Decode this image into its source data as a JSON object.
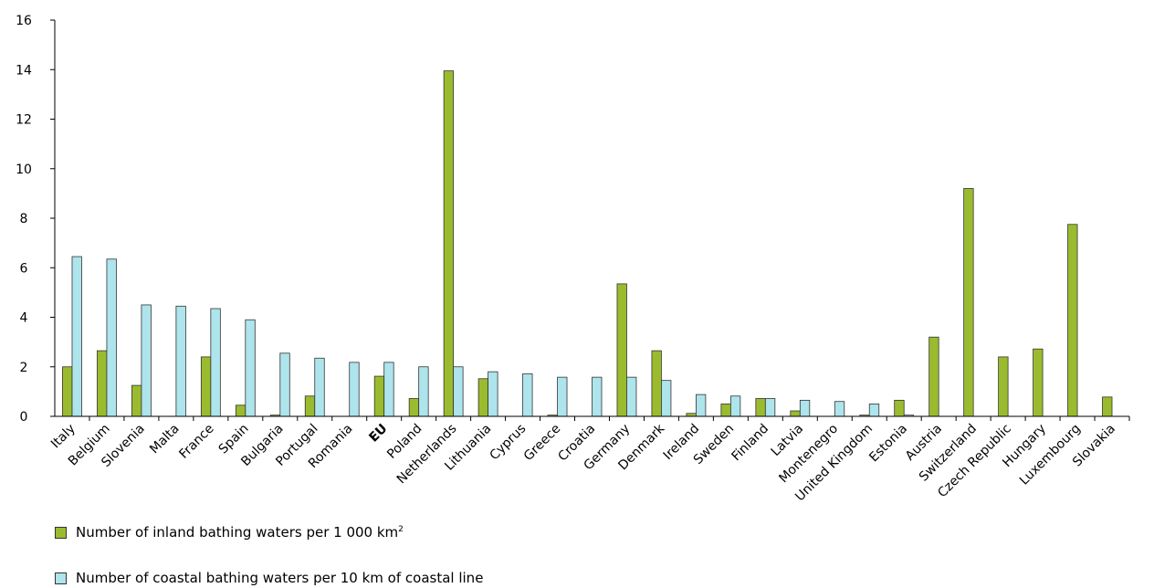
{
  "chart_data": {
    "type": "bar",
    "categories": [
      "Italy",
      "Belgium",
      "Slovenia",
      "Malta",
      "France",
      "Spain",
      "Bulgaria",
      "Portugal",
      "Romania",
      "EU",
      "Poland",
      "Netherlands",
      "Lithuania",
      "Cyprus",
      "Greece",
      "Croatia",
      "Germany",
      "Denmark",
      "Ireland",
      "Sweden",
      "Finland",
      "Latvia",
      "Montenegro",
      "United Kingdom",
      "Estonia",
      "Austria",
      "Switzerland",
      "Czech Republic",
      "Hungary",
      "Luxembourg",
      "Slovakia"
    ],
    "bold_categories": [
      "EU"
    ],
    "series": [
      {
        "name": "Number of inland bathing waters per 1 000 km",
        "name_superscript": "2",
        "color": "#9BBB2F",
        "values": [
          2.0,
          2.65,
          1.25,
          0,
          2.4,
          0.45,
          0.05,
          0.82,
          0,
          1.62,
          0.72,
          13.95,
          1.52,
          0,
          0.05,
          0,
          5.35,
          2.65,
          0.12,
          0.5,
          0.72,
          0.22,
          0,
          0.05,
          0.65,
          3.2,
          9.2,
          2.4,
          2.72,
          7.75,
          0.78
        ]
      },
      {
        "name": "Number of coastal bathing waters per 10 km of coastal line",
        "name_superscript": "",
        "color": "#AEE4EC",
        "values": [
          6.45,
          6.35,
          4.5,
          4.45,
          4.35,
          3.9,
          2.55,
          2.35,
          2.18,
          2.18,
          2.0,
          2.0,
          1.8,
          1.72,
          1.58,
          1.58,
          1.58,
          1.45,
          0.88,
          0.82,
          0.72,
          0.65,
          0.6,
          0.5,
          0.05,
          0,
          0,
          0,
          0,
          0,
          0
        ]
      }
    ],
    "ylim": [
      0,
      16
    ],
    "yticks": [
      "0",
      "2",
      "4",
      "6",
      "8",
      "10",
      "12",
      "14",
      "16"
    ],
    "legend_position": "bottom-left",
    "grid": false
  }
}
